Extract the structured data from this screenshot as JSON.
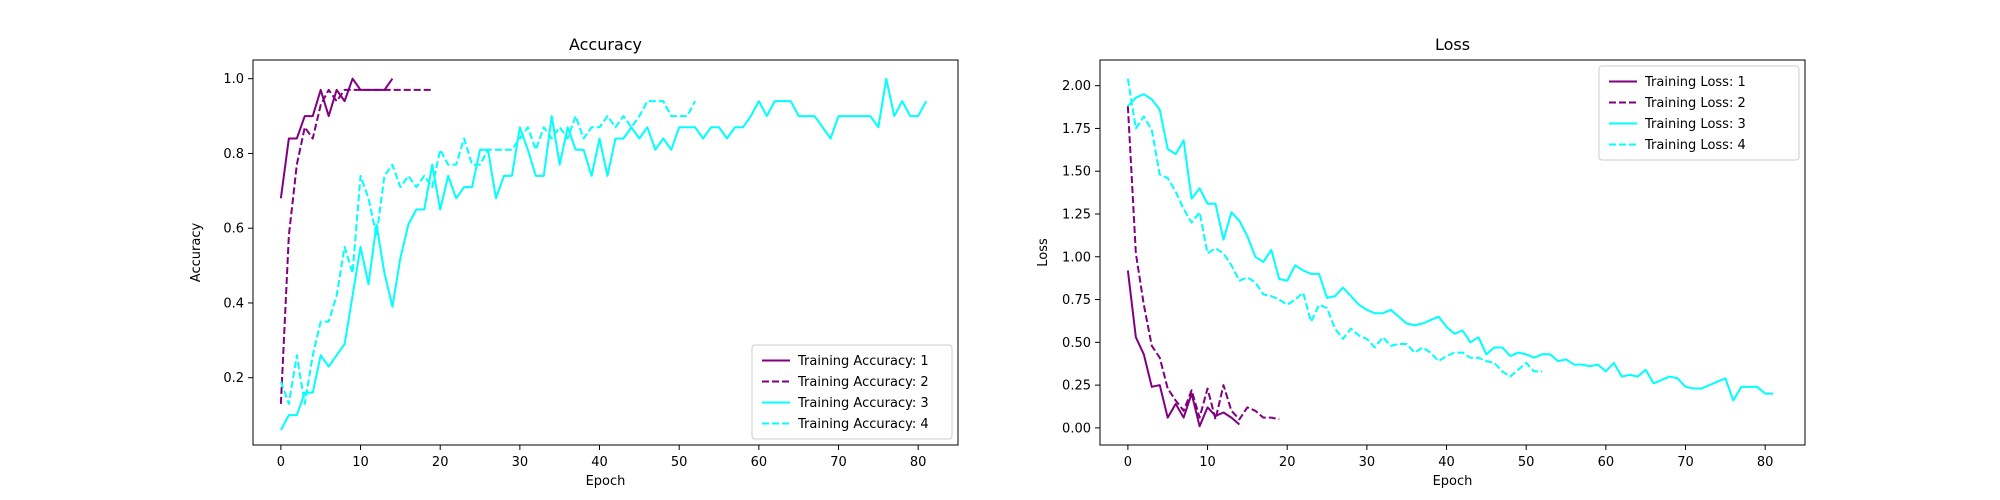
{
  "chart_data": [
    {
      "type": "line",
      "title": "Accuracy",
      "xlabel": "Epoch",
      "ylabel": "Accuracy",
      "xlim": [
        -3.5,
        85
      ],
      "ylim": [
        0.02,
        1.05
      ],
      "xticks": [
        0,
        10,
        20,
        30,
        40,
        50,
        60,
        70,
        80
      ],
      "yticks": [
        0.2,
        0.4,
        0.6,
        0.8,
        1.0
      ],
      "ytick_labels": [
        "0.2",
        "0.4",
        "0.6",
        "0.8",
        "1.0"
      ],
      "legend_position": "lower-right",
      "grid": false,
      "series": [
        {
          "name": "Training Accuracy: 1",
          "color": "#800080",
          "dash": "solid",
          "values": [
            0.68,
            0.84,
            0.84,
            0.9,
            0.9,
            0.97,
            0.9,
            0.97,
            0.94,
            1.0,
            0.97,
            0.97,
            0.97,
            0.97,
            1.0
          ]
        },
        {
          "name": "Training Accuracy: 2",
          "color": "#800080",
          "dash": "dashed",
          "values": [
            0.13,
            0.58,
            0.77,
            0.87,
            0.84,
            0.93,
            0.97,
            0.94,
            0.97,
            0.97,
            0.97,
            0.97,
            0.97,
            0.97,
            0.97,
            0.97,
            0.97,
            0.97,
            0.97,
            0.97
          ]
        },
        {
          "name": "Training Accuracy: 3",
          "color": "#00FFFF",
          "dash": "solid",
          "values": [
            0.06,
            0.1,
            0.1,
            0.16,
            0.16,
            0.26,
            0.23,
            0.26,
            0.29,
            0.42,
            0.55,
            0.45,
            0.61,
            0.48,
            0.39,
            0.52,
            0.61,
            0.65,
            0.65,
            0.77,
            0.65,
            0.74,
            0.68,
            0.71,
            0.71,
            0.81,
            0.81,
            0.68,
            0.74,
            0.74,
            0.87,
            0.81,
            0.74,
            0.74,
            0.9,
            0.77,
            0.87,
            0.81,
            0.81,
            0.74,
            0.84,
            0.74,
            0.84,
            0.84,
            0.87,
            0.84,
            0.87,
            0.81,
            0.84,
            0.81,
            0.87,
            0.87,
            0.87,
            0.84,
            0.87,
            0.87,
            0.84,
            0.87,
            0.87,
            0.9,
            0.94,
            0.9,
            0.94,
            0.94,
            0.94,
            0.9,
            0.9,
            0.9,
            0.87,
            0.84,
            0.9,
            0.9,
            0.9,
            0.9,
            0.9,
            0.87,
            1.0,
            0.9,
            0.94,
            0.9,
            0.9,
            0.94
          ]
        },
        {
          "name": "Training Accuracy: 4",
          "color": "#00FFFF",
          "dash": "dashed",
          "values": [
            0.19,
            0.13,
            0.26,
            0.13,
            0.26,
            0.35,
            0.35,
            0.42,
            0.55,
            0.48,
            0.74,
            0.68,
            0.58,
            0.74,
            0.77,
            0.71,
            0.74,
            0.71,
            0.74,
            0.71,
            0.81,
            0.77,
            0.77,
            0.84,
            0.77,
            0.77,
            0.81,
            0.81,
            0.81,
            0.81,
            0.84,
            0.87,
            0.81,
            0.87,
            0.84,
            0.87,
            0.84,
            0.9,
            0.84,
            0.87,
            0.87,
            0.9,
            0.87,
            0.9,
            0.87,
            0.9,
            0.94,
            0.94,
            0.94,
            0.9,
            0.9,
            0.9,
            0.94
          ]
        }
      ]
    },
    {
      "type": "line",
      "title": "Loss",
      "xlabel": "Epoch",
      "ylabel": "Loss",
      "xlim": [
        -3.5,
        85
      ],
      "ylim": [
        -0.1,
        2.15
      ],
      "xticks": [
        0,
        10,
        20,
        30,
        40,
        50,
        60,
        70,
        80
      ],
      "yticks": [
        0.0,
        0.25,
        0.5,
        0.75,
        1.0,
        1.25,
        1.5,
        1.75,
        2.0
      ],
      "ytick_labels": [
        "0.00",
        "0.25",
        "0.50",
        "0.75",
        "1.00",
        "1.25",
        "1.50",
        "1.75",
        "2.00"
      ],
      "legend_position": "upper-right",
      "grid": false,
      "series": [
        {
          "name": "Training Loss: 1",
          "color": "#800080",
          "dash": "solid",
          "values": [
            0.92,
            0.53,
            0.43,
            0.24,
            0.25,
            0.06,
            0.14,
            0.06,
            0.2,
            0.01,
            0.12,
            0.07,
            0.09,
            0.06,
            0.02
          ]
        },
        {
          "name": "Training Loss: 2",
          "color": "#800080",
          "dash": "dashed",
          "values": [
            1.88,
            1.02,
            0.72,
            0.48,
            0.41,
            0.23,
            0.16,
            0.1,
            0.22,
            0.06,
            0.23,
            0.05,
            0.25,
            0.1,
            0.05,
            0.12,
            0.1,
            0.06,
            0.06,
            0.05
          ]
        },
        {
          "name": "Training Loss: 3",
          "color": "#00FFFF",
          "dash": "solid",
          "values": [
            1.88,
            1.93,
            1.95,
            1.92,
            1.86,
            1.63,
            1.6,
            1.68,
            1.34,
            1.4,
            1.31,
            1.31,
            1.1,
            1.26,
            1.21,
            1.12,
            1.0,
            0.97,
            1.04,
            0.87,
            0.86,
            0.95,
            0.92,
            0.9,
            0.9,
            0.76,
            0.77,
            0.82,
            0.77,
            0.72,
            0.69,
            0.67,
            0.67,
            0.69,
            0.65,
            0.61,
            0.6,
            0.61,
            0.63,
            0.65,
            0.59,
            0.55,
            0.57,
            0.5,
            0.53,
            0.43,
            0.47,
            0.47,
            0.42,
            0.44,
            0.43,
            0.41,
            0.43,
            0.43,
            0.39,
            0.4,
            0.37,
            0.37,
            0.36,
            0.37,
            0.33,
            0.38,
            0.3,
            0.31,
            0.3,
            0.34,
            0.26,
            0.28,
            0.3,
            0.29,
            0.24,
            0.23,
            0.23,
            0.25,
            0.27,
            0.29,
            0.16,
            0.24,
            0.24,
            0.24,
            0.2,
            0.2
          ]
        },
        {
          "name": "Training Loss: 4",
          "color": "#00FFFF",
          "dash": "dashed",
          "values": [
            2.04,
            1.75,
            1.82,
            1.74,
            1.48,
            1.46,
            1.38,
            1.28,
            1.2,
            1.26,
            1.02,
            1.05,
            1.02,
            0.95,
            0.86,
            0.88,
            0.85,
            0.78,
            0.77,
            0.75,
            0.72,
            0.75,
            0.79,
            0.62,
            0.72,
            0.7,
            0.58,
            0.52,
            0.58,
            0.54,
            0.52,
            0.47,
            0.53,
            0.48,
            0.49,
            0.49,
            0.44,
            0.47,
            0.44,
            0.39,
            0.42,
            0.44,
            0.44,
            0.41,
            0.41,
            0.39,
            0.38,
            0.33,
            0.3,
            0.34,
            0.38,
            0.33,
            0.33
          ]
        }
      ]
    }
  ]
}
